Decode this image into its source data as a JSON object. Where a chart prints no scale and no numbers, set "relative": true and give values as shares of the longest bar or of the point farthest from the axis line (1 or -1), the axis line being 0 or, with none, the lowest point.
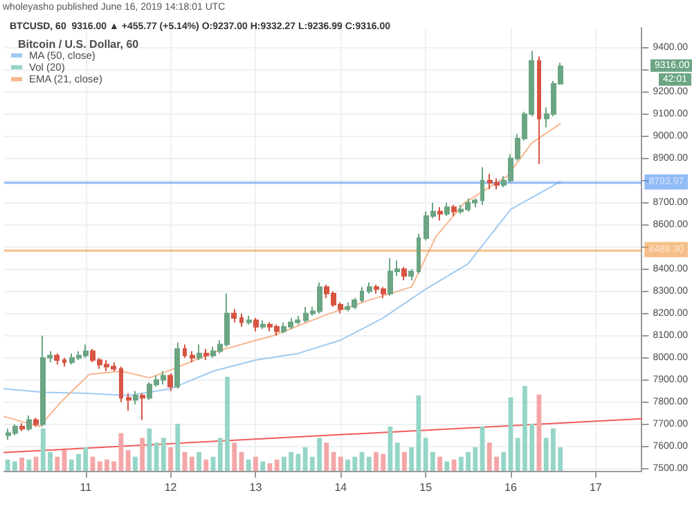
{
  "chart_data": [
    {
      "type": "candlestick",
      "title": "Bitcoin / U.S. Dollar, 60",
      "subtitle": "BTCUSD, 60  9316.00 ▲ +455.77 (+5.14%) O:9237.00 H:9332.27 L:9236.99 C:9316.00",
      "annotations": [
        "wholeyasho published June 16, 2019 14:18:01 UTC",
        "9316.00",
        "42:01"
      ],
      "xlim": [
        "2019-06-10T01:00",
        "2019-06-17T13:00"
      ],
      "xticks": [
        {
          "value": "2019-06-11",
          "label": "11"
        },
        {
          "value": "2019-06-12",
          "label": "12"
        },
        {
          "value": "2019-06-13",
          "label": "13"
        },
        {
          "value": "2019-06-14",
          "label": "14"
        },
        {
          "value": "2019-06-15",
          "label": "15"
        },
        {
          "value": "2019-06-16",
          "label": "16"
        },
        {
          "value": "2019-06-17",
          "label": "17"
        }
      ],
      "ylim": [
        7490,
        9490
      ],
      "yticks": [
        {
          "value": 7500,
          "label": "7500.00"
        },
        {
          "value": 7600,
          "label": "7600.00"
        },
        {
          "value": 7700,
          "label": "7700.00"
        },
        {
          "value": 7800,
          "label": "7800.00"
        },
        {
          "value": 7900,
          "label": "7900.00"
        },
        {
          "value": 8000,
          "label": "8000.00"
        },
        {
          "value": 8100,
          "label": "8100.00"
        },
        {
          "value": 8200,
          "label": "8200.00"
        },
        {
          "value": 8300,
          "label": "8300.00"
        },
        {
          "value": 8400,
          "label": "8400.00"
        },
        {
          "value": 8500,
          "label": null
        },
        {
          "value": 8600,
          "label": "8600.00"
        },
        {
          "value": 8700,
          "label": "8700.00"
        },
        {
          "value": 8800,
          "label": null
        },
        {
          "value": 8900,
          "label": "8900.00"
        },
        {
          "value": 9000,
          "label": "9000.00"
        },
        {
          "value": 9100,
          "label": "9100.00"
        },
        {
          "value": 9200,
          "label": "9200.00"
        },
        {
          "value": 9300,
          "label": null
        },
        {
          "value": 9400,
          "label": "9400.00"
        }
      ],
      "grid": true,
      "legend": "top left",
      "marker": "none",
      "line_style": "solid",
      "ref_lines": [
        {
          "axis": "y",
          "value": 8793.97,
          "label": "8793.97",
          "color": "#4a90f0"
        },
        {
          "axis": "y",
          "value": 8488.3,
          "label": "8488.30",
          "color": "#f0953a"
        }
      ],
      "x": [
        "2019-06-10T02:00",
        "2019-06-10T04:00",
        "2019-06-10T06:00",
        "2019-06-10T08:00",
        "2019-06-10T10:00",
        "2019-06-10T12:00",
        "2019-06-10T14:00",
        "2019-06-10T16:00",
        "2019-06-10T18:00",
        "2019-06-10T20:00",
        "2019-06-10T22:00",
        "2019-06-11T00:00",
        "2019-06-11T02:00",
        "2019-06-11T04:00",
        "2019-06-11T06:00",
        "2019-06-11T08:00",
        "2019-06-11T10:00",
        "2019-06-11T12:00",
        "2019-06-11T14:00",
        "2019-06-11T16:00",
        "2019-06-11T18:00",
        "2019-06-11T20:00",
        "2019-06-11T22:00",
        "2019-06-12T00:00",
        "2019-06-12T02:00",
        "2019-06-12T04:00",
        "2019-06-12T06:00",
        "2019-06-12T08:00",
        "2019-06-12T10:00",
        "2019-06-12T12:00",
        "2019-06-12T14:00",
        "2019-06-12T16:00",
        "2019-06-12T18:00",
        "2019-06-12T20:00",
        "2019-06-12T22:00",
        "2019-06-13T00:00",
        "2019-06-13T02:00",
        "2019-06-13T04:00",
        "2019-06-13T06:00",
        "2019-06-13T08:00",
        "2019-06-13T10:00",
        "2019-06-13T12:00",
        "2019-06-13T14:00",
        "2019-06-13T16:00",
        "2019-06-13T18:00",
        "2019-06-13T20:00",
        "2019-06-13T22:00",
        "2019-06-14T00:00",
        "2019-06-14T02:00",
        "2019-06-14T04:00",
        "2019-06-14T06:00",
        "2019-06-14T08:00",
        "2019-06-14T10:00",
        "2019-06-14T12:00",
        "2019-06-14T14:00",
        "2019-06-14T16:00",
        "2019-06-14T18:00",
        "2019-06-14T20:00",
        "2019-06-14T22:00",
        "2019-06-15T00:00",
        "2019-06-15T02:00",
        "2019-06-15T04:00",
        "2019-06-15T06:00",
        "2019-06-15T08:00",
        "2019-06-15T10:00",
        "2019-06-15T12:00",
        "2019-06-15T14:00",
        "2019-06-15T16:00",
        "2019-06-15T18:00",
        "2019-06-15T20:00",
        "2019-06-15T22:00",
        "2019-06-16T00:00",
        "2019-06-16T02:00",
        "2019-06-16T04:00",
        "2019-06-16T06:00",
        "2019-06-16T08:00",
        "2019-06-16T10:00",
        "2019-06-16T12:00",
        "2019-06-16T14:00"
      ],
      "series": [
        {
          "ohlc": [
            [
              7650,
              7680,
              7630,
              7660
            ],
            [
              7660,
              7700,
              7650,
              7690
            ],
            [
              7690,
              7705,
              7670,
              7680
            ],
            [
              7680,
              7740,
              7670,
              7720
            ],
            [
              7720,
              7730,
              7690,
              7700
            ],
            [
              7700,
              8100,
              7690,
              8000
            ],
            [
              8000,
              8030,
              7980,
              8010
            ],
            [
              8010,
              8020,
              7970,
              7990
            ],
            [
              7990,
              8000,
              7960,
              7980
            ],
            [
              7980,
              8020,
              7970,
              8000
            ],
            [
              8000,
              8030,
              7990,
              8010
            ],
            [
              8010,
              8060,
              8000,
              8030
            ],
            [
              8030,
              8040,
              7980,
              7990
            ],
            [
              7990,
              8000,
              7950,
              7970
            ],
            [
              7970,
              7990,
              7940,
              7960
            ],
            [
              7960,
              7980,
              7940,
              7950
            ],
            [
              7950,
              7960,
              7800,
              7820
            ],
            [
              7820,
              7840,
              7760,
              7810
            ],
            [
              7810,
              7850,
              7790,
              7830
            ],
            [
              7830,
              7840,
              7720,
              7820
            ],
            [
              7820,
              7890,
              7810,
              7880
            ],
            [
              7880,
              7920,
              7870,
              7900
            ],
            [
              7900,
              7940,
              7880,
              7920
            ],
            [
              7920,
              7930,
              7850,
              7870
            ],
            [
              7870,
              8070,
              7860,
              8040
            ],
            [
              8040,
              8060,
              8000,
              8010
            ],
            [
              8010,
              8030,
              7980,
              8000
            ],
            [
              8000,
              8060,
              7990,
              8020
            ],
            [
              8020,
              8040,
              7990,
              8010
            ],
            [
              8010,
              8050,
              8000,
              8030
            ],
            [
              8030,
              8080,
              8020,
              8060
            ],
            [
              8060,
              8290,
              8050,
              8200
            ],
            [
              8200,
              8220,
              8160,
              8180
            ],
            [
              8180,
              8200,
              8140,
              8160
            ],
            [
              8160,
              8190,
              8150,
              8170
            ],
            [
              8170,
              8180,
              8120,
              8140
            ],
            [
              8140,
              8170,
              8130,
              8150
            ],
            [
              8150,
              8160,
              8120,
              8140
            ],
            [
              8140,
              8150,
              8100,
              8120
            ],
            [
              8120,
              8160,
              8110,
              8140
            ],
            [
              8140,
              8180,
              8130,
              8160
            ],
            [
              8160,
              8190,
              8150,
              8170
            ],
            [
              8170,
              8230,
              8160,
              8200
            ],
            [
              8200,
              8230,
              8190,
              8210
            ],
            [
              8210,
              8340,
              8200,
              8320
            ],
            [
              8320,
              8330,
              8270,
              8290
            ],
            [
              8290,
              8300,
              8230,
              8240
            ],
            [
              8240,
              8250,
              8200,
              8220
            ],
            [
              8220,
              8250,
              8210,
              8230
            ],
            [
              8230,
              8270,
              8220,
              8260
            ],
            [
              8260,
              8320,
              8250,
              8300
            ],
            [
              8300,
              8340,
              8290,
              8320
            ],
            [
              8320,
              8330,
              8290,
              8310
            ],
            [
              8310,
              8320,
              8270,
              8290
            ],
            [
              8290,
              8450,
              8280,
              8390
            ],
            [
              8390,
              8440,
              8370,
              8400
            ],
            [
              8400,
              8410,
              8350,
              8370
            ],
            [
              8370,
              8400,
              8350,
              8390
            ],
            [
              8390,
              8560,
              8380,
              8540
            ],
            [
              8540,
              8660,
              8530,
              8640
            ],
            [
              8640,
              8700,
              8630,
              8660
            ],
            [
              8660,
              8680,
              8620,
              8650
            ],
            [
              8650,
              8700,
              8640,
              8680
            ],
            [
              8680,
              8690,
              8640,
              8660
            ],
            [
              8660,
              8690,
              8650,
              8670
            ],
            [
              8670,
              8720,
              8660,
              8700
            ],
            [
              8700,
              8720,
              8680,
              8710
            ],
            [
              8710,
              8860,
              8690,
              8800
            ],
            [
              8800,
              8830,
              8760,
              8790
            ],
            [
              8790,
              8810,
              8760,
              8780
            ],
            [
              8780,
              8820,
              8770,
              8800
            ],
            [
              8800,
              8920,
              8790,
              8900
            ],
            [
              8900,
              9010,
              8890,
              8990
            ],
            [
              8990,
              9110,
              8980,
              9100
            ],
            [
              9100,
              9385,
              9090,
              9340
            ],
            [
              9340,
              9360,
              8875,
              9080
            ],
            [
              9080,
              9130,
              9040,
              9100
            ],
            [
              9100,
              9250,
              9090,
              9237
            ],
            [
              9237,
              9332.27,
              9236.99,
              9316
            ]
          ],
          "colors": [
            "#6ba583",
            "#6ba583",
            "#d75442",
            "#6ba583",
            "#d75442",
            "#6ba583",
            "#6ba583",
            "#d75442",
            "#d75442",
            "#6ba583",
            "#6ba583",
            "#6ba583",
            "#d75442",
            "#d75442",
            "#d75442",
            "#d75442",
            "#d75442",
            "#d75442",
            "#6ba583",
            "#d75442",
            "#6ba583",
            "#6ba583",
            "#6ba583",
            "#d75442",
            "#6ba583",
            "#d75442",
            "#d75442",
            "#6ba583",
            "#d75442",
            "#6ba583",
            "#6ba583",
            "#6ba583",
            "#d75442",
            "#d75442",
            "#6ba583",
            "#d75442",
            "#6ba583",
            "#d75442",
            "#d75442",
            "#6ba583",
            "#6ba583",
            "#6ba583",
            "#6ba583",
            "#6ba583",
            "#6ba583",
            "#d75442",
            "#d75442",
            "#d75442",
            "#6ba583",
            "#6ba583",
            "#6ba583",
            "#6ba583",
            "#d75442",
            "#d75442",
            "#6ba583",
            "#6ba583",
            "#d75442",
            "#6ba583",
            "#6ba583",
            "#6ba583",
            "#6ba583",
            "#d75442",
            "#6ba583",
            "#d75442",
            "#6ba583",
            "#6ba583",
            "#6ba583",
            "#6ba583",
            "#d75442",
            "#d75442",
            "#6ba583",
            "#6ba583",
            "#6ba583",
            "#6ba583",
            "#6ba583",
            "#d75442",
            "#6ba583",
            "#6ba583",
            "#6ba583"
          ]
        },
        {
          "type": "line",
          "name": "MA (50, close)",
          "color": "#9fcbf3",
          "x": [
            "2019-06-10T01:00",
            "2019-06-10T12:00",
            "2019-06-11T00:00",
            "2019-06-11T12:00",
            "2019-06-12T00:00",
            "2019-06-12T12:00",
            "2019-06-13T00:00",
            "2019-06-13T12:00",
            "2019-06-14T00:00",
            "2019-06-14T12:00",
            "2019-06-15T00:00",
            "2019-06-15T12:00",
            "2019-06-16T00:00",
            "2019-06-16T14:00"
          ],
          "values": [
            7860,
            7845,
            7840,
            7830,
            7860,
            7940,
            7990,
            8020,
            8080,
            8180,
            8310,
            8425,
            8670,
            8795
          ]
        },
        {
          "type": "line",
          "name": "EMA (21, close)",
          "color": "#f7b68e",
          "x": [
            "2019-06-10T01:00",
            "2019-06-10T11:00",
            "2019-06-10T17:00",
            "2019-06-11T01:00",
            "2019-06-11T10:00",
            "2019-06-11T18:00",
            "2019-06-12T00:00",
            "2019-06-12T13:00",
            "2019-06-13T05:00",
            "2019-06-13T20:00",
            "2019-06-14T08:00",
            "2019-06-14T20:00",
            "2019-06-15T03:00",
            "2019-06-15T11:00",
            "2019-06-15T23:00",
            "2019-06-16T06:00",
            "2019-06-16T14:00"
          ],
          "values": [
            7735,
            7690,
            7800,
            7925,
            7940,
            7910,
            7945,
            8030,
            8100,
            8195,
            8260,
            8320,
            8550,
            8700,
            8820,
            8970,
            9057
          ]
        },
        {
          "type": "line",
          "color": "#f25c5c",
          "x": [
            "2019-06-10T01:00",
            "2019-06-17T13:00"
          ],
          "values": [
            7573,
            7725
          ]
        }
      ]
    },
    {
      "type": "bar",
      "relative": true,
      "tick_labels": false,
      "legend": "top left",
      "categories": [
        null,
        null,
        null,
        null,
        null,
        null,
        null,
        null,
        null,
        null,
        null,
        null,
        null,
        null,
        null,
        null,
        null,
        null,
        null,
        null,
        null,
        null,
        null,
        null,
        null,
        null,
        null,
        null,
        null,
        null,
        null,
        null,
        null,
        null,
        null,
        null,
        null,
        null,
        null,
        null,
        null,
        null,
        null,
        null,
        null,
        null,
        null,
        null,
        null,
        null,
        null,
        null,
        null,
        null,
        null,
        null,
        null,
        null,
        null,
        null,
        null,
        null,
        null,
        null,
        null,
        null,
        null,
        null,
        null,
        null,
        null,
        null,
        null,
        null,
        null,
        null,
        null,
        null,
        null
      ],
      "series": [
        {
          "name": "Vol (20)",
          "values": [
            0.12,
            0.1,
            0.14,
            0.12,
            0.15,
            0.45,
            0.2,
            0.15,
            0.22,
            0.12,
            0.18,
            0.25,
            0.15,
            0.1,
            0.12,
            0.1,
            0.4,
            0.22,
            0.15,
            0.35,
            0.45,
            0.3,
            0.35,
            0.25,
            0.5,
            0.2,
            0.15,
            0.2,
            0.12,
            0.15,
            0.35,
            1,
            0.3,
            0.2,
            0.12,
            0.15,
            0.1,
            0.08,
            0.12,
            0.15,
            0.2,
            0.18,
            0.25,
            0.15,
            0.35,
            0.3,
            0.2,
            0.15,
            0.12,
            0.15,
            0.2,
            0.15,
            0.2,
            0.18,
            0.47,
            0.3,
            0.2,
            0.25,
            0.8,
            0.35,
            0.2,
            0.15,
            0.1,
            0.12,
            0.15,
            0.2,
            0.25,
            0.47,
            0.3,
            0.15,
            0.2,
            0.78,
            0.35,
            0.9,
            0.5,
            0.81,
            0.35,
            0.45,
            0.25
          ],
          "colors": [
            "#95d5c8",
            "#95d5c8",
            "#f4a6a6",
            "#95d5c8",
            "#f4a6a6",
            "#95d5c8",
            "#95d5c8",
            "#f4a6a6",
            "#f4a6a6",
            "#95d5c8",
            "#95d5c8",
            "#95d5c8",
            "#f4a6a6",
            "#f4a6a6",
            "#f4a6a6",
            "#f4a6a6",
            "#f4a6a6",
            "#f4a6a6",
            "#95d5c8",
            "#f4a6a6",
            "#95d5c8",
            "#95d5c8",
            "#95d5c8",
            "#f4a6a6",
            "#95d5c8",
            "#f4a6a6",
            "#f4a6a6",
            "#95d5c8",
            "#f4a6a6",
            "#95d5c8",
            "#95d5c8",
            "#95d5c8",
            "#f4a6a6",
            "#f4a6a6",
            "#95d5c8",
            "#f4a6a6",
            "#95d5c8",
            "#f4a6a6",
            "#f4a6a6",
            "#95d5c8",
            "#95d5c8",
            "#95d5c8",
            "#95d5c8",
            "#95d5c8",
            "#95d5c8",
            "#f4a6a6",
            "#f4a6a6",
            "#f4a6a6",
            "#95d5c8",
            "#95d5c8",
            "#95d5c8",
            "#95d5c8",
            "#f4a6a6",
            "#f4a6a6",
            "#95d5c8",
            "#95d5c8",
            "#f4a6a6",
            "#95d5c8",
            "#95d5c8",
            "#95d5c8",
            "#95d5c8",
            "#f4a6a6",
            "#95d5c8",
            "#f4a6a6",
            "#95d5c8",
            "#95d5c8",
            "#95d5c8",
            "#95d5c8",
            "#f4a6a6",
            "#f4a6a6",
            "#95d5c8",
            "#95d5c8",
            "#95d5c8",
            "#95d5c8",
            "#95d5c8",
            "#f4a6a6",
            "#95d5c8",
            "#95d5c8",
            "#95d5c8"
          ]
        }
      ]
    }
  ]
}
